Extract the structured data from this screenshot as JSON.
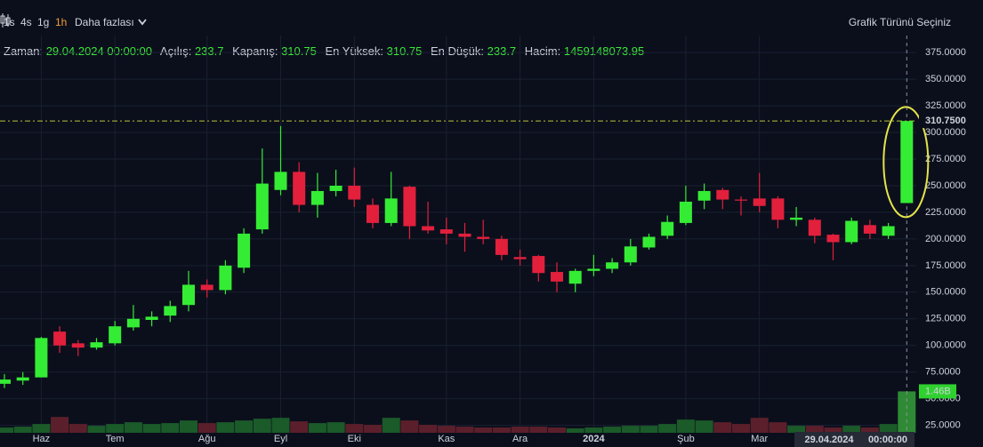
{
  "toolbar": {
    "intervals": [
      "1s",
      "4s",
      "1g",
      "1h"
    ],
    "active": 3,
    "more": "Daha fazlası",
    "chart_type": "Grafik Türünü Seçiniz"
  },
  "legend": {
    "time": "Zaman:",
    "open": "Açılış:",
    "close": "Kapanış:",
    "high": "En Yüksek:",
    "low": "En Düşük:",
    "volume": "Hacim:"
  },
  "chart_data": {
    "type": "candlestick",
    "categories": [
      null,
      null,
      "Haz",
      null,
      null,
      null,
      "Tem",
      null,
      null,
      null,
      null,
      "Ağu",
      null,
      null,
      null,
      "Eyl",
      null,
      null,
      null,
      "Eki",
      null,
      null,
      null,
      null,
      "Kas",
      null,
      null,
      null,
      "Ara",
      null,
      null,
      null,
      "2024",
      null,
      null,
      null,
      null,
      "Şub",
      null,
      null,
      null,
      "Mar",
      null,
      null,
      null,
      null,
      null,
      null,
      null,
      null
    ],
    "open": [
      64,
      67,
      70,
      113,
      102,
      98,
      102,
      117,
      124,
      128,
      138,
      157,
      152,
      173,
      209,
      246,
      263,
      232,
      245,
      250,
      232,
      215,
      249,
      212,
      209,
      205,
      202,
      200,
      183,
      184,
      169,
      158,
      170,
      172,
      178,
      192,
      203,
      215,
      236,
      246,
      237,
      238,
      238,
      218,
      218,
      204,
      197,
      213,
      203,
      233.7
    ],
    "high": [
      73,
      75,
      108,
      118,
      105,
      107,
      123,
      138,
      132,
      142,
      170,
      162,
      180,
      210,
      285,
      306,
      272,
      262,
      265,
      267,
      238,
      263,
      250,
      235,
      220,
      215,
      218,
      203,
      190,
      185,
      178,
      172,
      185,
      182,
      200,
      205,
      222,
      250,
      252,
      248,
      240,
      262,
      240,
      230,
      220,
      205,
      220,
      218,
      215,
      310.75
    ],
    "low": [
      60,
      63,
      70,
      93,
      90,
      96,
      100,
      114,
      118,
      122,
      132,
      145,
      148,
      168,
      205,
      241,
      225,
      220,
      240,
      230,
      210,
      212,
      200,
      205,
      195,
      188,
      195,
      180,
      175,
      160,
      150,
      150,
      165,
      168,
      175,
      190,
      200,
      213,
      228,
      228,
      222,
      225,
      210,
      212,
      196,
      180,
      195,
      200,
      200,
      233.7
    ],
    "close": [
      68,
      70,
      107,
      100,
      98,
      103,
      118,
      125,
      127,
      137,
      157,
      152,
      175,
      205,
      252,
      263,
      232,
      245,
      250,
      237,
      215,
      238,
      212,
      208,
      205,
      202,
      200,
      185,
      181,
      168,
      160,
      170,
      172,
      178,
      193,
      202,
      216,
      235,
      245,
      237,
      236,
      231,
      218,
      220,
      203,
      197,
      217,
      205,
      212,
      310.75
    ],
    "volume": [
      186000000,
      217000000,
      310000000,
      558000000,
      310000000,
      248000000,
      310000000,
      372000000,
      310000000,
      341000000,
      434000000,
      341000000,
      372000000,
      434000000,
      496000000,
      527000000,
      403000000,
      341000000,
      372000000,
      310000000,
      279000000,
      527000000,
      434000000,
      279000000,
      248000000,
      217000000,
      186000000,
      186000000,
      217000000,
      217000000,
      186000000,
      155000000,
      186000000,
      217000000,
      248000000,
      248000000,
      310000000,
      465000000,
      434000000,
      372000000,
      310000000,
      527000000,
      372000000,
      248000000,
      248000000,
      186000000,
      248000000,
      186000000,
      310000000,
      1459148073.95
    ],
    "up_color": "#35ec35",
    "down_color": "#e2203c",
    "volume_up_color": "#1b5a29",
    "volume_down_color": "#5b1f2b",
    "ylim": [
      18,
      391
    ],
    "yticks": [
      {
        "value": 25,
        "label": "25.0000"
      },
      {
        "value": 50,
        "label": "50.0000"
      },
      {
        "value": 75,
        "label": "75.0000"
      },
      {
        "value": 100,
        "label": "100.0000"
      },
      {
        "value": 125,
        "label": "125.0000"
      },
      {
        "value": 150,
        "label": "150.0000"
      },
      {
        "value": 175,
        "label": "175.0000"
      },
      {
        "value": 200,
        "label": "200.0000"
      },
      {
        "value": 225,
        "label": "225.0000"
      },
      {
        "value": 250,
        "label": "250.0000"
      },
      {
        "value": 275,
        "label": "275.0000"
      },
      {
        "value": 300,
        "label": "300.0000"
      },
      {
        "value": 325,
        "label": "325.0000"
      },
      {
        "value": 350,
        "label": "350.0000"
      },
      {
        "value": 375,
        "label": "375.0000"
      }
    ],
    "volume_ylim": [
      0,
      14000000000
    ],
    "last_price_label": {
      "value": 310.75,
      "label": "310.7500"
    },
    "volume_label": {
      "value": 1459148073.95,
      "label": "1.46B"
    },
    "crosshair": {
      "date": "29.04.2024",
      "time": "00:00:00"
    },
    "grid": true
  }
}
